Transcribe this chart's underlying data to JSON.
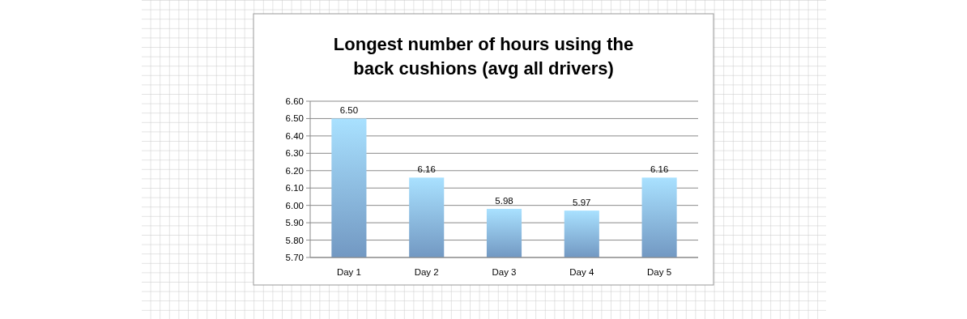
{
  "chart_data": {
    "type": "bar",
    "title": "Longest number of hours using the\nback cushions (avg all drivers)",
    "categories": [
      "Day 1",
      "Day 2",
      "Day 3",
      "Day 4",
      "Day 5"
    ],
    "values": [
      6.5,
      6.16,
      5.98,
      5.97,
      6.16
    ],
    "value_labels": [
      "6.50",
      "6.16",
      "5.98",
      "5.97",
      "6.16"
    ],
    "color": "#8dbcf0",
    "ylim": [
      5.7,
      6.6
    ],
    "yticks": [
      {
        "value": 5.7,
        "label": "5.70"
      },
      {
        "value": 5.8,
        "label": "5.80"
      },
      {
        "value": 5.9,
        "label": "5.90"
      },
      {
        "value": 6.0,
        "label": "6.00"
      },
      {
        "value": 6.1,
        "label": "6.10"
      },
      {
        "value": 6.2,
        "label": "6.20"
      },
      {
        "value": 6.3,
        "label": "6.30"
      },
      {
        "value": 6.4,
        "label": "6.40"
      },
      {
        "value": 6.5,
        "label": "6.50"
      },
      {
        "value": 6.6,
        "label": "6.60"
      }
    ],
    "grid": "y"
  }
}
